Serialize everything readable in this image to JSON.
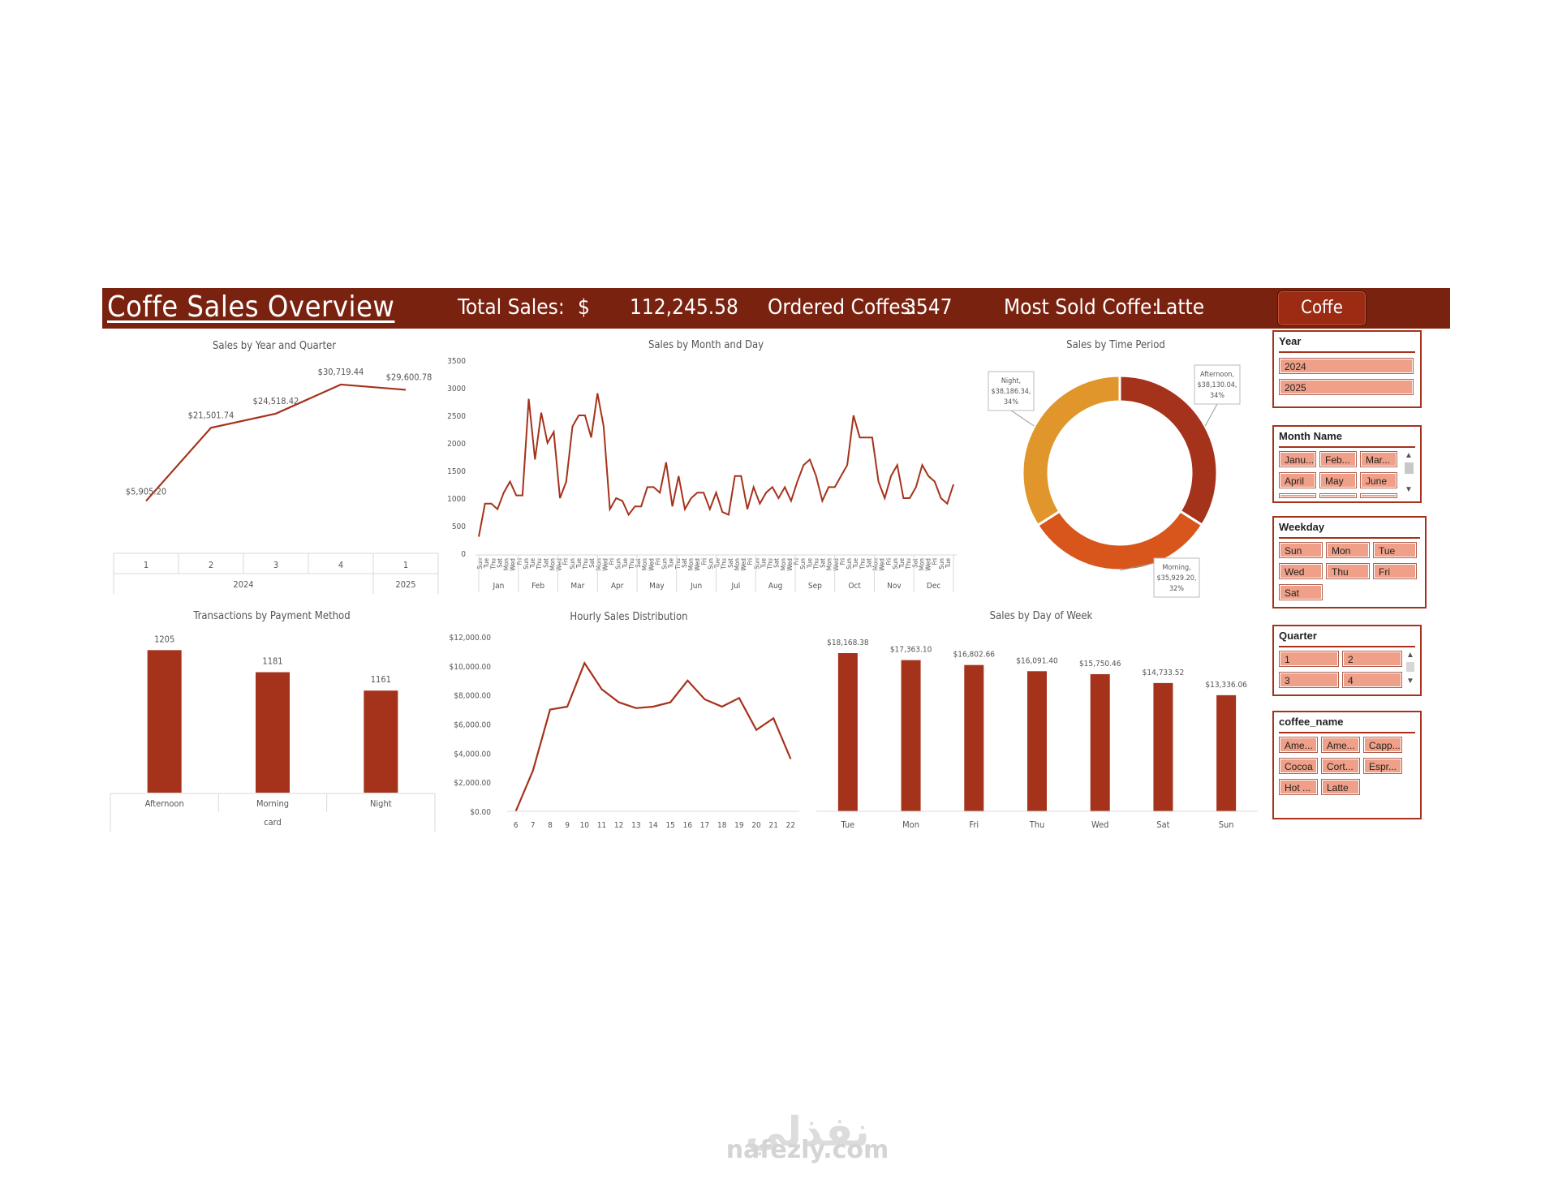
{
  "header": {
    "title": "Coffe Sales  Overview",
    "total_sales_label": "Total Sales:",
    "currency_symbol": "$",
    "total_sales_value": "112,245.58",
    "ordered_label": "Ordered Coffes:",
    "ordered_value": "3547",
    "most_sold_label": "Most Sold Coffe:",
    "most_sold_value": "Latte",
    "button_label": "Coffe Sales",
    "bg_color": "#7a2210"
  },
  "colors": {
    "accent": "#a5321b",
    "line": "#a5321b",
    "orange": "#e0962a",
    "dark_orange": "#d8561c",
    "slicer_item": "#f0a088"
  },
  "chart_data": [
    {
      "type": "line",
      "title": "Sales by Year and Quarter",
      "categories": [
        "1",
        "2",
        "3",
        "4",
        "1"
      ],
      "groups": [
        "2024",
        "2025"
      ],
      "values": [
        5905.2,
        21501.74,
        24518.42,
        30719.44,
        29600.78
      ],
      "labels": [
        "$5,905.20",
        "$21,501.74",
        "$24,518.42",
        "$30,719.44",
        "$29,600.78"
      ]
    },
    {
      "type": "line",
      "title": "Sales by Month and Day",
      "ylim": [
        0,
        3500
      ],
      "yticks": [
        "0",
        "500",
        "1000",
        "1500",
        "2000",
        "2500",
        "3000",
        "3500"
      ],
      "months": [
        "Jan",
        "Feb",
        "Mar",
        "Apr",
        "May",
        "Jun",
        "Jul",
        "Aug",
        "Sep",
        "Oct",
        "Nov",
        "Dec"
      ],
      "day_labels": [
        "Sun",
        "Tue",
        "Thu",
        "Sat",
        "Mon",
        "Wed",
        "Fri"
      ],
      "values": [
        300,
        900,
        900,
        800,
        1100,
        1300,
        1050,
        1050,
        2800,
        1700,
        2550,
        2000,
        2200,
        1000,
        1300,
        2300,
        2500,
        2500,
        2100,
        2900,
        2300,
        800,
        1000,
        950,
        700,
        850,
        850,
        1200,
        1200,
        1100,
        1650,
        850,
        1400,
        800,
        1000,
        1100,
        1100,
        800,
        1100,
        750,
        700,
        1400,
        1400,
        800,
        1200,
        900,
        1100,
        1200,
        1000,
        1200,
        950,
        1300,
        1600,
        1700,
        1400,
        950,
        1200,
        1200,
        1400,
        1600,
        2500,
        2100,
        2100,
        2100,
        1300,
        1000,
        1400,
        1600,
        1000,
        1000,
        1200,
        1600,
        1400,
        1300,
        1000,
        900,
        1250
      ]
    },
    {
      "type": "pie",
      "title": "Sales by Time Period",
      "slices": [
        {
          "name": "Afternoon",
          "value": 38130.04,
          "label": "Afternoon, $38,130.04, 34%",
          "color": "#a5321b"
        },
        {
          "name": "Morning",
          "value": 35929.2,
          "label": "Morning, $35,929.20, 32%",
          "color": "#d8561c"
        },
        {
          "name": "Night",
          "value": 38186.34,
          "label": "Night, $38,186.34, 34%",
          "color": "#e0962a"
        }
      ]
    },
    {
      "type": "bar",
      "title": "Transactions by Payment Method",
      "categories": [
        "Afternoon",
        "Morning",
        "Night"
      ],
      "group": "card",
      "values": [
        1205,
        1181,
        1161
      ],
      "labels": [
        "1205",
        "1181",
        "1161"
      ]
    },
    {
      "type": "line",
      "title": "Hourly Sales Distribution",
      "ylim": [
        0,
        12000
      ],
      "yticks": [
        "$0.00",
        "$2,000.00",
        "$4,000.00",
        "$6,000.00",
        "$8,000.00",
        "$10,000.00",
        "$12,000.00"
      ],
      "categories": [
        "6",
        "7",
        "8",
        "9",
        "10",
        "11",
        "12",
        "13",
        "14",
        "15",
        "16",
        "17",
        "18",
        "19",
        "20",
        "21",
        "22"
      ],
      "values": [
        0,
        2800,
        7000,
        7200,
        10200,
        8400,
        7500,
        7100,
        7200,
        7500,
        9000,
        7700,
        7200,
        7800,
        5600,
        6400,
        3600
      ]
    },
    {
      "type": "bar",
      "title": "Sales by Day of Week",
      "categories": [
        "Tue",
        "Mon",
        "Fri",
        "Thu",
        "Wed",
        "Sat",
        "Sun"
      ],
      "values": [
        18168.38,
        17363.1,
        16802.66,
        16091.4,
        15750.46,
        14733.52,
        13336.06
      ],
      "labels": [
        "$18,168.38",
        "$17,363.10",
        "$16,802.66",
        "$16,091.40",
        "$15,750.46",
        "$14,733.52",
        "$13,336.06"
      ]
    }
  ],
  "slicers": {
    "year": {
      "title": "Year",
      "items": [
        "2024",
        "2025"
      ]
    },
    "month": {
      "title": "Month Name",
      "items": [
        "Janu...",
        "Feb...",
        "Mar...",
        "April",
        "May",
        "June"
      ]
    },
    "weekday": {
      "title": "Weekday",
      "items": [
        "Sun",
        "Mon",
        "Tue",
        "Wed",
        "Thu",
        "Fri",
        "Sat"
      ]
    },
    "quarter": {
      "title": "Quarter",
      "items": [
        "1",
        "2",
        "3",
        "4"
      ]
    },
    "coffee": {
      "title": "coffee_name",
      "items": [
        "Ame...",
        "Ame...",
        "Capp...",
        "Cocoa",
        "Cort...",
        "Espr...",
        "Hot ...",
        "Latte"
      ]
    }
  },
  "watermark": {
    "arabic": "نفذلي",
    "latin": "nafezly.com"
  }
}
